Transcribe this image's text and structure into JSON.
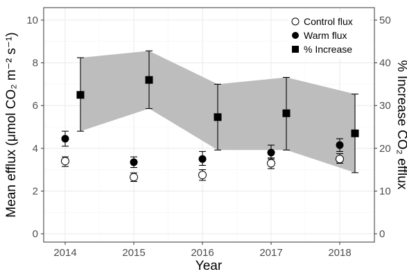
{
  "chart_data": {
    "type": "scatter",
    "x": [
      2014,
      2015,
      2016,
      2017,
      2018
    ],
    "x_tick_labels": [
      "2014",
      "2015",
      "2016",
      "2017",
      "2018"
    ],
    "xlabel": "Year",
    "ylabel_left": "Mean efflux (μmol CO₂ m⁻² s⁻¹)",
    "ylabel_right": "% Increase CO₂ efflux",
    "ylim_left": [
      0,
      10
    ],
    "ylim_right": [
      0,
      50
    ],
    "y_ticks_left": [
      "0",
      "2",
      "4",
      "6",
      "8",
      "10"
    ],
    "y_ticks_right": [
      "0",
      "10",
      "20",
      "30",
      "40",
      "50"
    ],
    "grid": true,
    "legend_position": "top-right",
    "series": [
      {
        "name": "Control flux",
        "marker": "open-circle",
        "axis": "left",
        "values": [
          3.4,
          2.65,
          2.75,
          3.3,
          3.5
        ],
        "error_low": [
          3.15,
          2.45,
          2.5,
          3.05,
          3.3
        ],
        "error_high": [
          3.6,
          2.85,
          3.0,
          3.55,
          3.75
        ]
      },
      {
        "name": "Warm flux",
        "marker": "filled-circle",
        "axis": "left",
        "values": [
          4.45,
          3.35,
          3.5,
          3.8,
          4.15
        ],
        "error_low": [
          4.1,
          3.1,
          3.2,
          3.5,
          3.85
        ],
        "error_high": [
          4.8,
          3.6,
          3.85,
          4.15,
          4.45
        ]
      },
      {
        "name": "% Increase",
        "marker": "filled-square",
        "axis": "right",
        "values": [
          32.5,
          36.0,
          27.3,
          28.2,
          23.5
        ],
        "error_low": [
          24.0,
          29.3,
          19.6,
          19.6,
          14.3
        ],
        "error_high": [
          41.2,
          42.8,
          35.0,
          36.6,
          32.7
        ]
      }
    ],
    "colors": {
      "band": "#bdbdbd",
      "grid": "#ebebeb",
      "panel_border": "#333333",
      "marker": "#000000"
    }
  }
}
